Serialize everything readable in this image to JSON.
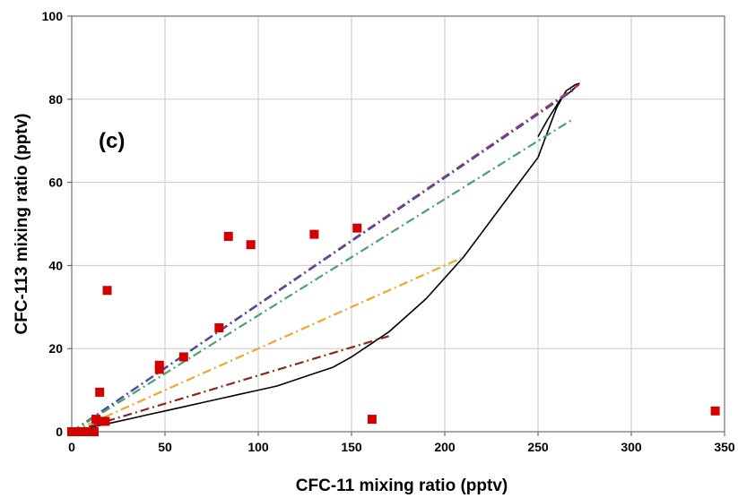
{
  "chart_data": {
    "type": "scatter",
    "title": "",
    "panel_label": "(c)",
    "xlabel": "CFC-11 mixing ratio (pptv)",
    "ylabel": "CFC-113 mixing ratio (pptv)",
    "xlim": [
      0,
      350
    ],
    "ylim": [
      0,
      100
    ],
    "x_ticks": [
      "0",
      "50",
      "100",
      "150",
      "200",
      "250",
      "300",
      "350"
    ],
    "y_ticks": [
      "0",
      "20",
      "40",
      "60",
      "80",
      "100"
    ],
    "grid": true,
    "legend": "none",
    "colors": {
      "points": "#d40000",
      "curve": "#000000",
      "red": "#e0301e",
      "blue": "#3f4fb0",
      "green": "#4aa36a",
      "orange": "#f4a52a",
      "brown": "#8b2a1a"
    },
    "series": [
      {
        "type": "scatter",
        "color": "#d40000",
        "points": [
          [
            0,
            0
          ],
          [
            2,
            0
          ],
          [
            4,
            0
          ],
          [
            6,
            0
          ],
          [
            8,
            0
          ],
          [
            10,
            0
          ],
          [
            12,
            0
          ],
          [
            13,
            3
          ],
          [
            15,
            9.5
          ],
          [
            16,
            2.5
          ],
          [
            18,
            2.5
          ],
          [
            19,
            34
          ],
          [
            47,
            16
          ],
          [
            47,
            15
          ],
          [
            60,
            18
          ],
          [
            79,
            25
          ],
          [
            84,
            47
          ],
          [
            96,
            45
          ],
          [
            130,
            47.5
          ],
          [
            153,
            49
          ],
          [
            161,
            3
          ],
          [
            345,
            5
          ]
        ]
      },
      {
        "type": "line",
        "style": "solid",
        "color": "#000000",
        "points": [
          [
            0,
            0
          ],
          [
            10,
            1
          ],
          [
            20,
            2
          ],
          [
            30,
            3
          ],
          [
            40,
            4
          ],
          [
            50,
            5
          ],
          [
            60,
            6
          ],
          [
            70,
            7
          ],
          [
            80,
            8
          ],
          [
            90,
            9
          ],
          [
            100,
            10
          ],
          [
            110,
            11
          ],
          [
            120,
            12.5
          ],
          [
            130,
            14
          ],
          [
            140,
            15.5
          ],
          [
            150,
            18
          ],
          [
            160,
            21
          ],
          [
            170,
            24
          ],
          [
            180,
            28
          ],
          [
            190,
            32
          ],
          [
            200,
            37
          ],
          [
            210,
            42
          ],
          [
            220,
            48
          ],
          [
            230,
            54
          ],
          [
            240,
            60
          ],
          [
            250,
            66
          ],
          [
            255,
            72
          ],
          [
            260,
            78
          ],
          [
            265,
            82
          ],
          [
            270,
            83.5
          ],
          [
            272,
            83.8
          ],
          [
            268,
            82
          ],
          [
            262,
            80
          ],
          [
            255,
            75
          ],
          [
            250,
            71
          ]
        ]
      },
      {
        "type": "line",
        "style": "dashdot",
        "color": "#e0301e",
        "points": [
          [
            0,
            0
          ],
          [
            272,
            83.5
          ]
        ]
      },
      {
        "type": "line",
        "style": "dashdot",
        "color": "#3f4fb0",
        "points": [
          [
            0,
            0
          ],
          [
            270,
            82.5
          ]
        ]
      },
      {
        "type": "line",
        "style": "dashdot",
        "color": "#4aa36a",
        "points": [
          [
            0,
            0
          ],
          [
            268,
            75
          ]
        ]
      },
      {
        "type": "line",
        "style": "dashdot",
        "color": "#f4a52a",
        "points": [
          [
            0,
            0
          ],
          [
            210,
            42
          ]
        ]
      },
      {
        "type": "line",
        "style": "dashdot",
        "color": "#8b2a1a",
        "points": [
          [
            0,
            0
          ],
          [
            170,
            23
          ]
        ]
      }
    ]
  }
}
